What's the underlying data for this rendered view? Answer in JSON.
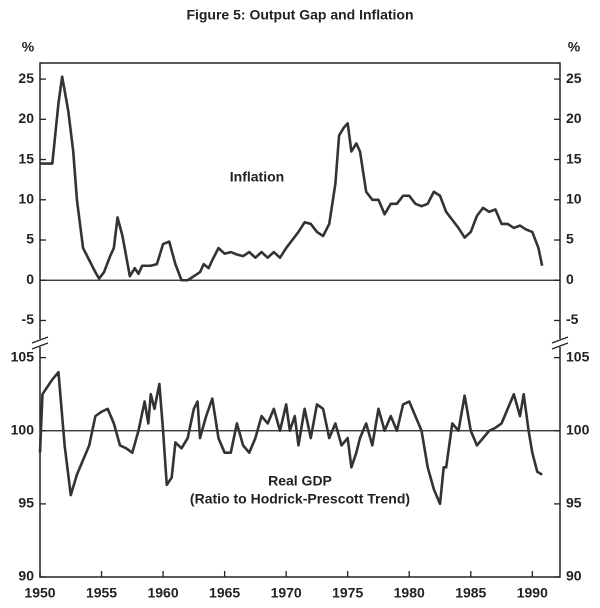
{
  "chart_data": [
    {
      "type": "line",
      "title": "Figure 5: Output Gap and Inflation",
      "ylabel": "%",
      "annotation": "Inflation",
      "x": [
        1950,
        1950.5,
        1951,
        1951.5,
        1951.8,
        1952.3,
        1952.7,
        1953,
        1953.5,
        1954,
        1954.5,
        1954.8,
        1955.2,
        1955.7,
        1956,
        1956.3,
        1956.7,
        1957,
        1957.3,
        1957.7,
        1958,
        1958.3,
        1959,
        1959.5,
        1960,
        1960.5,
        1961,
        1961.5,
        1962,
        1962.5,
        1963,
        1963.3,
        1963.7,
        1964,
        1964.5,
        1965,
        1965.5,
        1966,
        1966.5,
        1967,
        1967.5,
        1968,
        1968.5,
        1969,
        1969.5,
        1970,
        1970.5,
        1971,
        1971.5,
        1972,
        1972.5,
        1973,
        1973.5,
        1974,
        1974.3,
        1974.7,
        1975,
        1975.3,
        1975.7,
        1976,
        1976.5,
        1977,
        1977.5,
        1978,
        1978.5,
        1979,
        1979.5,
        1980,
        1980.5,
        1981,
        1981.5,
        1982,
        1982.5,
        1983,
        1983.5,
        1984,
        1984.5,
        1985,
        1985.5,
        1986,
        1986.5,
        1987,
        1987.5,
        1988,
        1988.5,
        1989,
        1989.5,
        1990,
        1990.5,
        1990.8
      ],
      "values": [
        14.5,
        14.5,
        14.5,
        22,
        25.3,
        21,
        16,
        10,
        4,
        2.5,
        1,
        0.2,
        1,
        3,
        4,
        7.8,
        5.5,
        3,
        0.5,
        1.5,
        0.8,
        1.8,
        1.8,
        2,
        4.5,
        4.8,
        2,
        0,
        0,
        0.5,
        1,
        2,
        1.5,
        2.5,
        4,
        3.3,
        3.5,
        3.2,
        3,
        3.5,
        2.8,
        3.5,
        2.8,
        3.5,
        2.8,
        4,
        5,
        6,
        7.2,
        7,
        6,
        5.5,
        7,
        12,
        18,
        19,
        19.5,
        16,
        17,
        16,
        11,
        10,
        10,
        8.2,
        9.5,
        9.5,
        10.5,
        10.5,
        9.5,
        9.2,
        9.5,
        11,
        10.5,
        8.5,
        7.5,
        6.5,
        5.3,
        6,
        8,
        9,
        8.5,
        8.8,
        7,
        7,
        6.5,
        6.8,
        6.3,
        6,
        4,
        1.8
      ],
      "color": "#333333",
      "hline": 0,
      "xlim": [
        1950,
        1992.25
      ],
      "ylim": [
        -7.8,
        27
      ],
      "yticks": [
        -5,
        0,
        5,
        10,
        15,
        20,
        25
      ]
    },
    {
      "type": "line",
      "annotation": [
        "Real  GDP",
        "(Ratio to Hodrick-Prescott Trend)"
      ],
      "x": [
        1950,
        1950.2,
        1951,
        1951.5,
        1952,
        1952.5,
        1953,
        1954,
        1954.5,
        1955,
        1955.5,
        1956,
        1956.5,
        1957,
        1957.5,
        1958,
        1958.5,
        1958.8,
        1959,
        1959.3,
        1959.7,
        1960,
        1960.3,
        1960.7,
        1961,
        1961.5,
        1962,
        1962.5,
        1962.8,
        1963,
        1963.5,
        1964,
        1964.5,
        1965,
        1965.5,
        1966,
        1966.5,
        1967,
        1967.5,
        1968,
        1968.5,
        1969,
        1969.5,
        1970,
        1970.3,
        1970.7,
        1971,
        1971.5,
        1972,
        1972.5,
        1973,
        1973.5,
        1974,
        1974.5,
        1975,
        1975.3,
        1975.7,
        1976,
        1976.5,
        1977,
        1977.5,
        1978,
        1978.5,
        1979,
        1979.5,
        1980,
        1980.5,
        1981,
        1981.5,
        1982,
        1982.5,
        1982.8,
        1983,
        1983.5,
        1984,
        1984.5,
        1985,
        1985.5,
        1986,
        1986.5,
        1987,
        1987.5,
        1988,
        1988.5,
        1989,
        1989.3,
        1989.7,
        1990,
        1990.4,
        1990.8
      ],
      "values": [
        98.5,
        102.5,
        103.5,
        104,
        99,
        95.6,
        97,
        99,
        101,
        101.3,
        101.5,
        100.5,
        99,
        98.8,
        98.5,
        100,
        102,
        100.5,
        102.5,
        101.5,
        103.2,
        100,
        96.3,
        96.8,
        99.2,
        98.8,
        99.5,
        101.5,
        102,
        99.5,
        101,
        102.2,
        99.5,
        98.5,
        98.5,
        100.5,
        99,
        98.5,
        99.5,
        101,
        100.5,
        101.5,
        100,
        101.8,
        100,
        101,
        99,
        101.5,
        99.5,
        101.8,
        101.5,
        99.5,
        100.5,
        99,
        99.5,
        97.5,
        98.5,
        99.5,
        100.5,
        99,
        101.5,
        100,
        101,
        100,
        101.8,
        102,
        101,
        100,
        97.5,
        96,
        95,
        97.5,
        97.5,
        100.5,
        100,
        102.4,
        100,
        99,
        99.5,
        100,
        100.2,
        100.5,
        101.5,
        102.5,
        101,
        102.5,
        100,
        98.5,
        97.2,
        97
      ],
      "color": "#333333",
      "hline": 100,
      "xlim": [
        1950,
        1992.25
      ],
      "xticks": [
        1950,
        1955,
        1960,
        1965,
        1970,
        1975,
        1980,
        1985,
        1990
      ],
      "ylim": [
        90,
        106
      ],
      "yticks": [
        90,
        95,
        100,
        105
      ]
    }
  ]
}
